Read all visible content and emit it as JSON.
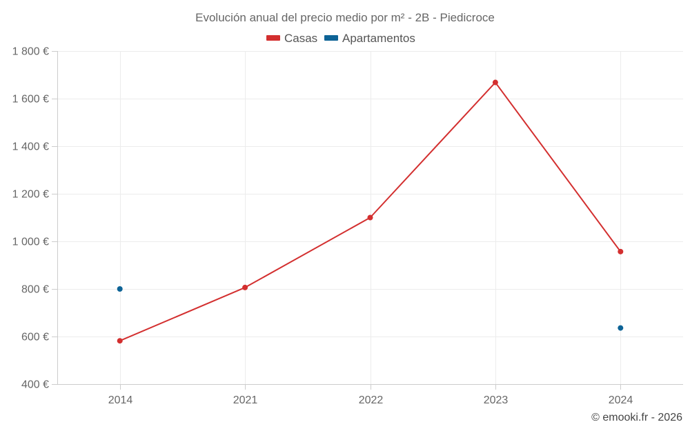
{
  "chart_data": {
    "type": "line",
    "title": "Evolución anual del precio medio por m² - 2B - Piedicroce",
    "categories": [
      "2014",
      "2021",
      "2022",
      "2023",
      "2024"
    ],
    "series": [
      {
        "name": "Casas",
        "color": "#d32f2f",
        "values": [
          582,
          806,
          1100,
          1668,
          957
        ]
      },
      {
        "name": "Apartamentos",
        "color": "#0d6396",
        "values": [
          800,
          null,
          null,
          null,
          636
        ]
      }
    ],
    "ylim": [
      400,
      1800
    ],
    "y_ticks": [
      400,
      600,
      800,
      1000,
      1200,
      1400,
      1600,
      1800
    ],
    "y_tick_labels": [
      "400 €",
      "600 €",
      "800 €",
      "1 000 €",
      "1 200 €",
      "1 400 €",
      "1 600 €",
      "1 800 €"
    ],
    "xlabel": "",
    "ylabel": "",
    "legend_position": "top-center",
    "grid": true
  },
  "credit": "© emooki.fr - 2026"
}
